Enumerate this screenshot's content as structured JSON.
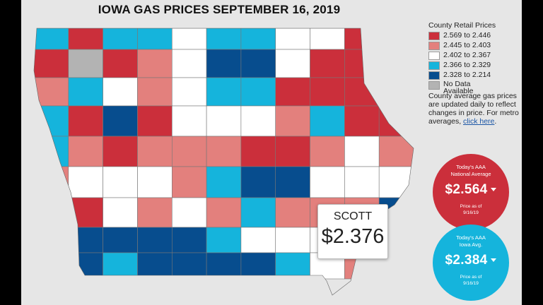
{
  "title": "IOWA GAS PRICES SEPTEMBER 16, 2019",
  "colors": {
    "red": "#cb2f3b",
    "pink": "#e3807d",
    "white": "#ffffff",
    "lightblue": "#15b4dc",
    "darkblue": "#074d8e",
    "gray": "#b3b3b3",
    "background": "#e6e6e6"
  },
  "legend": {
    "title": "County Retail Prices",
    "items": [
      {
        "label": "2.569 to 2.446",
        "color": "#cb2f3b"
      },
      {
        "label": "2.445 to 2.403",
        "color": "#e3807d"
      },
      {
        "label": "2.402 to 2.367",
        "color": "#ffffff"
      },
      {
        "label": "2.366 to 2.329",
        "color": "#15b4dc"
      },
      {
        "label": "2.328 to 2.214",
        "color": "#074d8e"
      },
      {
        "label": "No Data\nAvailable",
        "color": "#b3b3b3"
      }
    ]
  },
  "note": {
    "text": "County average gas prices are updated daily to reflect changes in price. For metro averages,",
    "link": "click here",
    "suffix": "."
  },
  "national": {
    "title": "Today's AAA\nNational Average",
    "price": "$2.564",
    "sub": "Price as of\n9/16/19",
    "arrow_icon": "caret-down-icon"
  },
  "iowa": {
    "title": "Today's AAA\nIowa Avg.",
    "price": "$2.384",
    "sub": "Price as of\n9/16/19",
    "arrow_icon": "caret-down-icon"
  },
  "tooltip": {
    "county": "SCOTT",
    "price": "$2.376"
  },
  "counties": [
    [
      "r1",
      "B",
      "R",
      "L",
      "L",
      "W",
      "L",
      "L",
      "W",
      "W",
      "R",
      "R"
    ],
    [
      "r2",
      "R",
      "G",
      "R",
      "P",
      "W",
      "D",
      "D",
      "W",
      "R",
      "R",
      "R"
    ],
    [
      "r3",
      "P",
      "L",
      "W",
      "P",
      "W",
      "L",
      "L",
      "R",
      "R",
      "R",
      "R"
    ],
    [
      "r4",
      "L",
      "R",
      "D",
      "R",
      "W",
      "W",
      "W",
      "P",
      "L",
      "R",
      "R"
    ],
    [
      "r5",
      "L",
      "P",
      "R",
      "P",
      "P",
      "P",
      "R",
      "R",
      "P",
      "W",
      "P"
    ],
    [
      "r6",
      "P",
      "W",
      "W",
      "W",
      "P",
      "L",
      "D",
      "D",
      "W",
      "W",
      "W"
    ],
    [
      "r7",
      "L",
      "R",
      "W",
      "P",
      "W",
      "P",
      "L",
      "P",
      "P",
      "P",
      "D"
    ],
    [
      "r8",
      "D",
      "D",
      "D",
      "D",
      "D",
      "L",
      "W",
      "W",
      "W",
      "W",
      "W"
    ],
    [
      "r9",
      "D",
      "D",
      "L",
      "D",
      "D",
      "D",
      "D",
      "L",
      "W",
      "P",
      "D"
    ]
  ]
}
